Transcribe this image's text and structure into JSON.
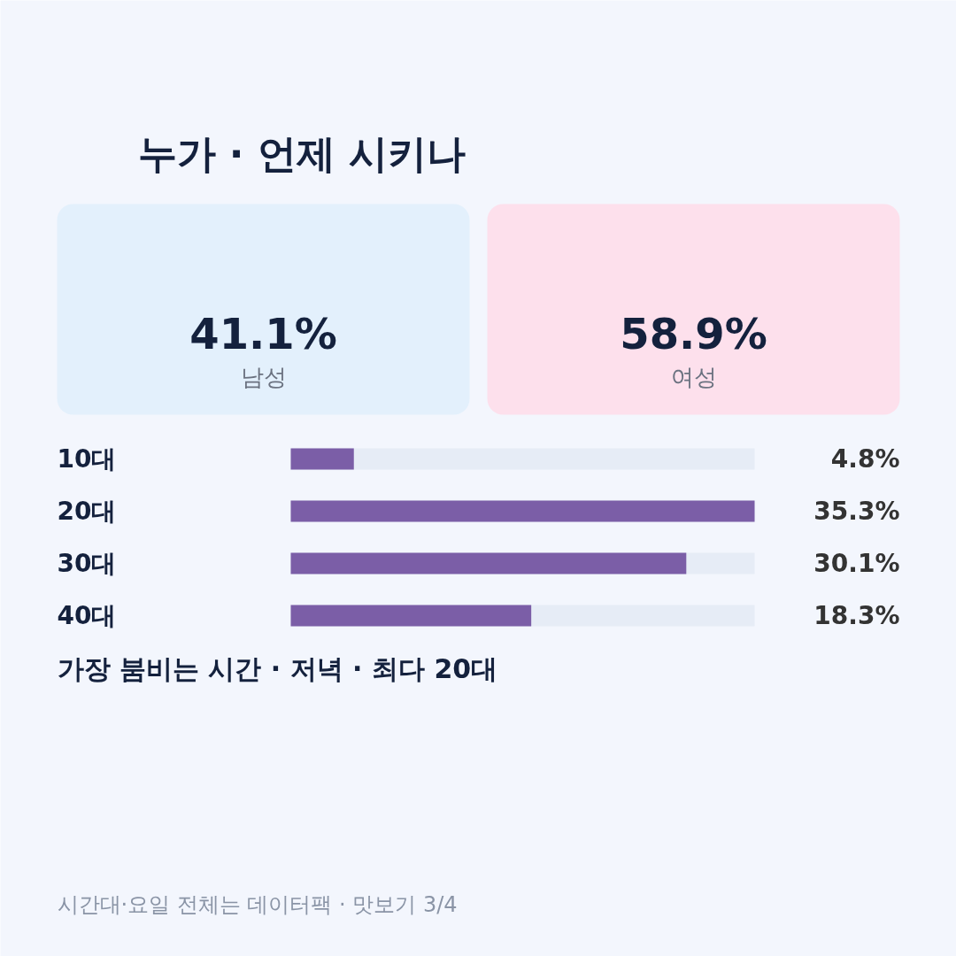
{
  "chart_data": [
    {
      "type": "other",
      "title": "누가 · 언제 시키나",
      "categories": [
        "남성",
        "여성"
      ],
      "values": [
        41.1,
        58.9
      ],
      "colors": [
        "#e3f0fc",
        "#fde0ec"
      ],
      "value_labels": [
        "41.1%",
        "58.9%"
      ]
    },
    {
      "type": "bar",
      "orientation": "horizontal",
      "categories": [
        "10대",
        "20대",
        "30대",
        "40대"
      ],
      "values": [
        4.8,
        35.3,
        30.1,
        18.3
      ],
      "color": "#7b5ea7",
      "value_labels": [
        "4.8%",
        "35.3%",
        "30.1%",
        "18.3%"
      ],
      "annotations": [
        "가장 붐비는 시간 · 저녁 · 최다 20대",
        "시간대·요일 전체는 데이터팩 · 맛보기 3/4"
      ]
    }
  ]
}
